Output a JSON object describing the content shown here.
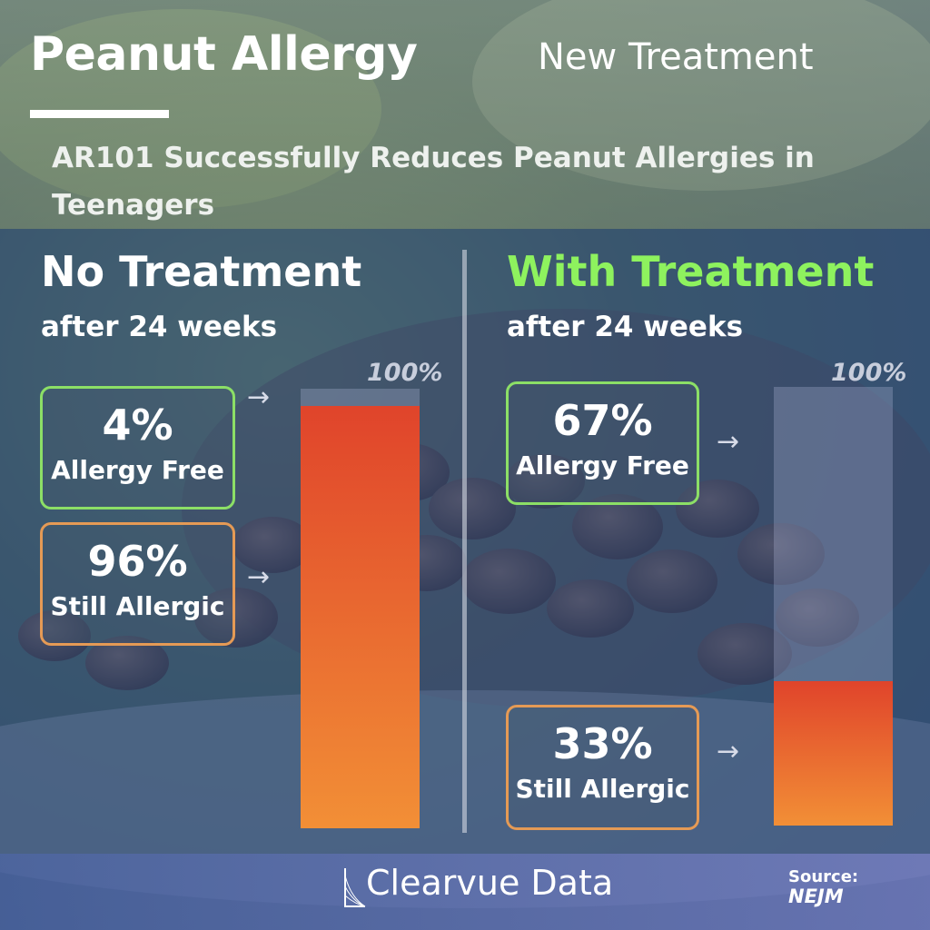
{
  "header": {
    "title": "Peanut Allergy",
    "tagline": "New Treatment",
    "subtitle": "AR101 Successfully Reduces Peanut Allergies in Teenagers"
  },
  "colors": {
    "allergy_free": "#8cdf66",
    "still_allergic": "#e59a55",
    "with_treatment_title": "#8ef25e",
    "bar_gradient_top": "#e0442b",
    "bar_gradient_bottom": "#f28f36"
  },
  "panels": [
    {
      "title": "No Treatment",
      "subtitle": "after 24 weeks",
      "axis_max_label": "100%",
      "allergy_free_pct": "4%",
      "allergy_free_label": "Allergy Free",
      "still_allergic_pct": "96%",
      "still_allergic_label": "Still Allergic"
    },
    {
      "title": "With Treatment",
      "subtitle": "after 24 weeks",
      "axis_max_label": "100%",
      "allergy_free_pct": "67%",
      "allergy_free_label": "Allergy Free",
      "still_allergic_pct": "33%",
      "still_allergic_label": "Still Allergic"
    }
  ],
  "chart_data": [
    {
      "type": "bar",
      "title": "No Treatment",
      "categories": [
        "Still Allergic"
      ],
      "values": [
        96
      ],
      "ylim": [
        0,
        100
      ]
    },
    {
      "type": "bar",
      "title": "With Treatment",
      "categories": [
        "Still Allergic"
      ],
      "values": [
        33
      ],
      "ylim": [
        0,
        100
      ]
    }
  ],
  "footer": {
    "brand": "Clearvue Data",
    "source_label": "Source:",
    "source_name": "NEJM"
  }
}
